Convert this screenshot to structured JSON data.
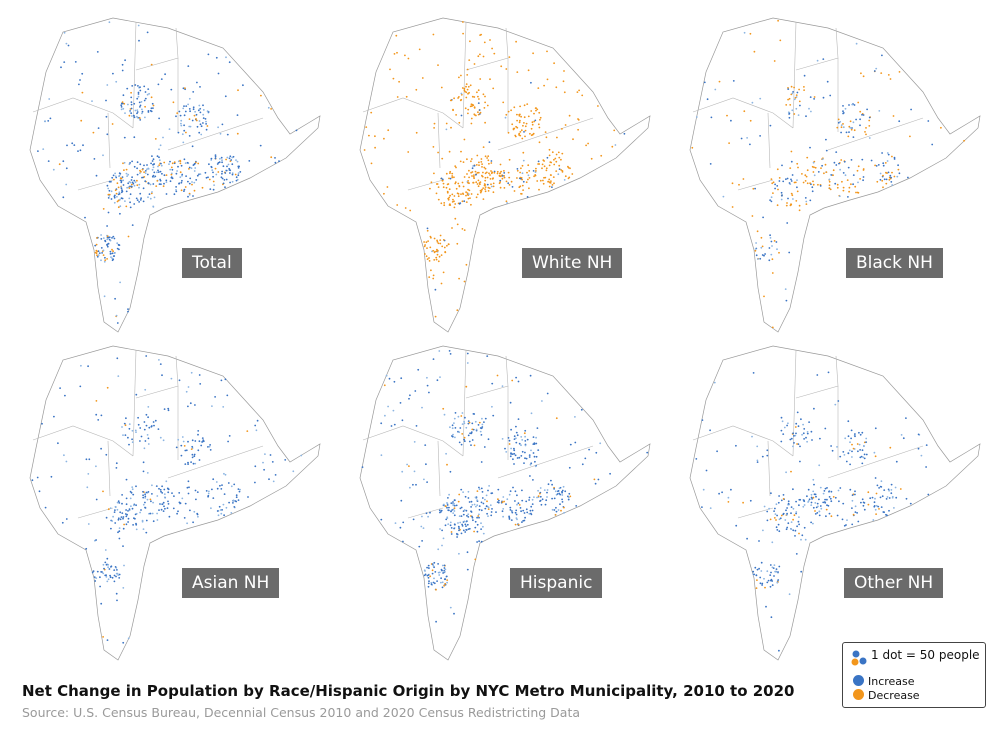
{
  "colors": {
    "increase": "#3a74c4",
    "increase_light": "#8cb5e2",
    "decrease": "#f2961c",
    "outline": "#9a9a9a",
    "label_bg": "#6b6b6b"
  },
  "panels": [
    {
      "label": "Total",
      "increase_density": 0.85,
      "decrease_density": 0.2
    },
    {
      "label": "White NH",
      "increase_density": 0.12,
      "decrease_density": 0.95
    },
    {
      "label": "Black NH",
      "increase_density": 0.35,
      "decrease_density": 0.3
    },
    {
      "label": "Asian NH",
      "increase_density": 0.7,
      "decrease_density": 0.03
    },
    {
      "label": "Hispanic",
      "increase_density": 0.9,
      "decrease_density": 0.08
    },
    {
      "label": "Other NH",
      "increase_density": 0.6,
      "decrease_density": 0.05
    }
  ],
  "legend": {
    "scale": "1 dot = 50 people",
    "increase": "Increase",
    "decrease": "Decrease"
  },
  "title": "Net Change in Population by Race/Hispanic Origin by NYC Metro Municipality, 2010 to 2020",
  "source": "Source: U.S. Census Bureau, Decennial Census 2010 and 2020 Census Redistricting Data"
}
